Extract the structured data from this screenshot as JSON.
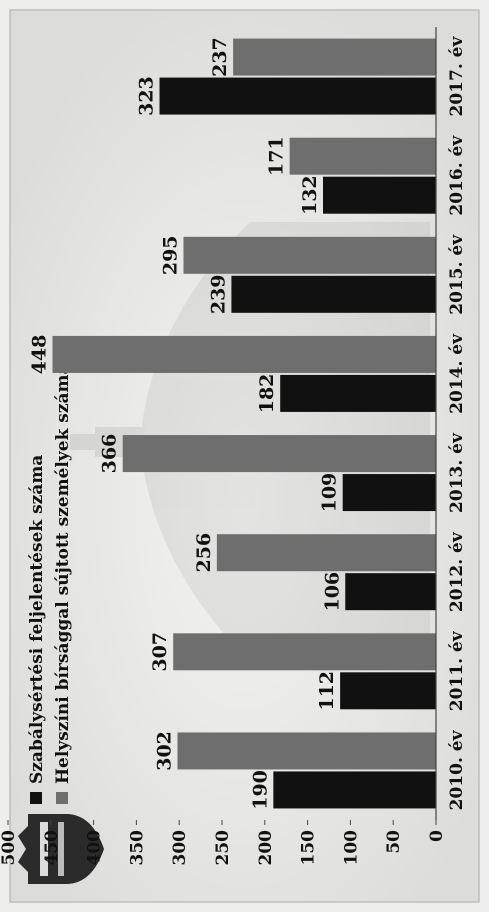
{
  "chart_data": {
    "type": "bar",
    "categories": [
      "2010. év",
      "2011. év",
      "2012. év",
      "2013. év",
      "2014. év",
      "2015. év",
      "2016. év",
      "2017. év"
    ],
    "series": [
      {
        "name": "Szabálysértési feljelentések száma",
        "values": [
          190,
          112,
          106,
          109,
          182,
          239,
          132,
          323
        ],
        "color": "#111111"
      },
      {
        "name": "Helyszíni bírsággal sújtott személyek száma",
        "values": [
          302,
          307,
          256,
          366,
          448,
          295,
          171,
          237
        ],
        "color": "#6e6e6e"
      }
    ],
    "title": "",
    "xlabel": "",
    "ylabel": "",
    "ylim": [
      0,
      500
    ],
    "yticks": [
      0,
      50,
      100,
      150,
      200,
      250,
      300,
      350,
      400,
      450,
      500
    ],
    "grid": false,
    "legend": "top-left",
    "orientation": "vertical",
    "value_labels": true
  },
  "emblem_icon": "crest-emblem-icon"
}
